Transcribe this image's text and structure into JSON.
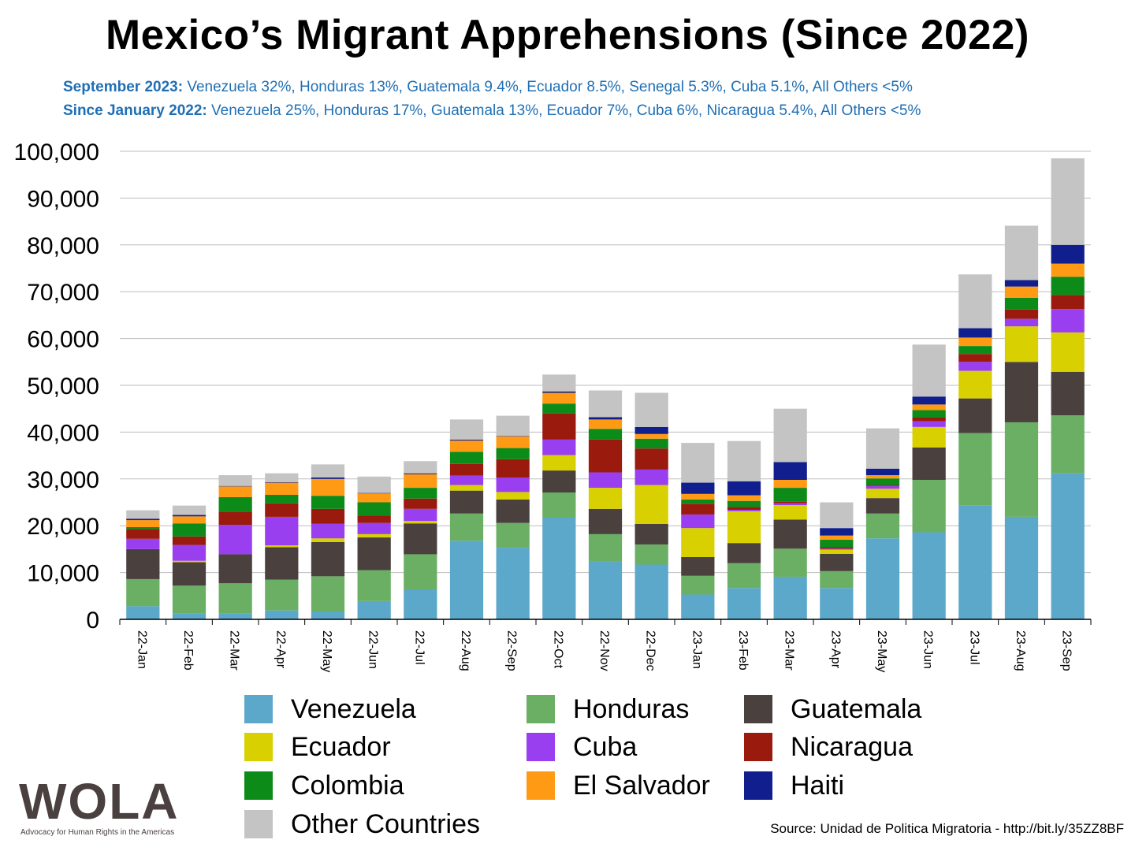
{
  "title": "Mexico’s Migrant Apprehensions (Since 2022)",
  "subtitle": [
    {
      "label": "September 2023:",
      "text": " Venezuela 32%, Honduras 13%, Guatemala 9.4%, Ecuador 8.5%, Senegal 5.3%, Cuba 5.1%, All Others <5%"
    },
    {
      "label": "Since January 2022:",
      "text": " Venezuela 25%, Honduras 17%, Guatemala 13%, Ecuador 7%, Cuba 6%, Nicaragua 5.4%, All Others <5%"
    }
  ],
  "source": "Source: Unidad de Politica Migratoria - http://bit.ly/35ZZ8BF",
  "logo": {
    "text": "WOLA",
    "tagline": "Advocacy for Human Rights in the Americas"
  },
  "chart_data": {
    "type": "bar",
    "stacked": true,
    "grid": true,
    "legend_position": "bottom",
    "ylim": [
      0,
      100000
    ],
    "yticks": [
      "0",
      "10,000",
      "20,000",
      "30,000",
      "40,000",
      "50,000",
      "60,000",
      "70,000",
      "80,000",
      "90,000",
      "100,000"
    ],
    "categories": [
      "22-Jan",
      "22-Feb",
      "22-Mar",
      "22-Apr",
      "22-May",
      "22-Jun",
      "22-Jul",
      "22-Aug",
      "22-Sep",
      "22-Oct",
      "22-Nov",
      "22-Dec",
      "23-Jan",
      "23-Feb",
      "23-Mar",
      "23-Apr",
      "23-May",
      "23-Jun",
      "23-Jul",
      "23-Aug",
      "23-Sep"
    ],
    "series": [
      {
        "name": "Venezuela",
        "color": "#5ba8cb",
        "values": [
          2800,
          1200,
          1200,
          1900,
          1600,
          3900,
          6400,
          16800,
          15300,
          21800,
          12300,
          11700,
          5300,
          6700,
          9100,
          6700,
          17300,
          18600,
          24300,
          21900,
          31200
        ]
      },
      {
        "name": "Honduras",
        "color": "#6aaf64",
        "values": [
          5800,
          6000,
          6500,
          6600,
          7600,
          6600,
          7500,
          5800,
          5300,
          5300,
          5900,
          4300,
          4000,
          5300,
          6000,
          3600,
          5300,
          11200,
          15500,
          20200,
          12400
        ]
      },
      {
        "name": "Guatemala",
        "color": "#4a403e",
        "values": [
          6400,
          5000,
          6200,
          6900,
          7300,
          7000,
          6600,
          4900,
          5000,
          4700,
          5400,
          4400,
          4000,
          4300,
          6200,
          3700,
          3300,
          6900,
          7400,
          12900,
          9300
        ]
      },
      {
        "name": "Ecuador",
        "color": "#d8d000",
        "values": [
          0,
          300,
          0,
          400,
          800,
          700,
          500,
          1200,
          1600,
          3300,
          4500,
          8300,
          6200,
          6800,
          3100,
          900,
          2000,
          4400,
          5900,
          7600,
          8400
        ]
      },
      {
        "name": "Cuba",
        "color": "#9a3ff0",
        "values": [
          2200,
          3400,
          6300,
          6100,
          3100,
          2400,
          2600,
          2000,
          3100,
          3300,
          3300,
          3300,
          2900,
          300,
          400,
          200,
          600,
          1200,
          1900,
          1600,
          5000
        ]
      },
      {
        "name": "Nicaragua",
        "color": "#9a1a0e",
        "values": [
          2100,
          1800,
          2800,
          2900,
          3200,
          1600,
          2200,
          2500,
          3900,
          5600,
          7000,
          4500,
          2300,
          600,
          300,
          300,
          200,
          800,
          1700,
          2000,
          3000
        ]
      },
      {
        "name": "Colombia",
        "color": "#0d8b18",
        "values": [
          400,
          2800,
          3100,
          1800,
          2800,
          2800,
          2300,
          2600,
          2400,
          2100,
          2300,
          2100,
          900,
          1300,
          3000,
          1600,
          1400,
          1600,
          1700,
          2500,
          3900
        ]
      },
      {
        "name": "El Salvador",
        "color": "#ff9a14",
        "values": [
          1500,
          1500,
          2300,
          2600,
          3600,
          1900,
          2900,
          2400,
          2500,
          2300,
          2000,
          1000,
          1200,
          1200,
          1700,
          900,
          700,
          1200,
          1800,
          2400,
          2800
        ]
      },
      {
        "name": "Haiti",
        "color": "#101e8e",
        "values": [
          300,
          300,
          100,
          100,
          300,
          100,
          200,
          200,
          100,
          300,
          500,
          1500,
          2400,
          3000,
          3800,
          1600,
          1400,
          1700,
          2000,
          1400,
          4000
        ]
      },
      {
        "name": "Other Countries",
        "color": "#c4c4c4",
        "values": [
          1800,
          2000,
          2300,
          1900,
          2800,
          3500,
          2600,
          4300,
          4300,
          3600,
          5700,
          7300,
          8500,
          8600,
          11400,
          5500,
          8600,
          11100,
          11500,
          11600,
          18500
        ]
      }
    ]
  }
}
